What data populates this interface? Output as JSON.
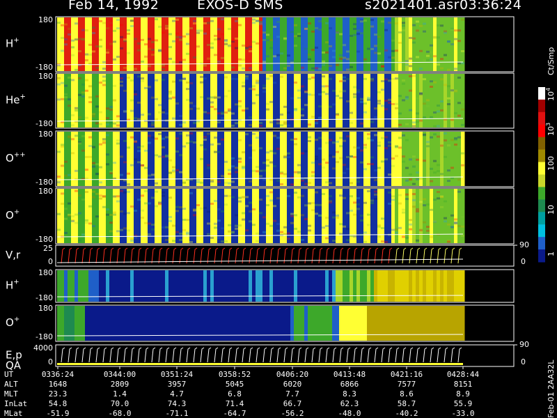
{
  "header": {
    "date": "Feb 14, 1992",
    "mission": "EXOS-D SMS",
    "filename": "s2021401.asr",
    "time": "03:36:24"
  },
  "chart_data": {
    "type": "heatmap",
    "panels": [
      {
        "name": "H+",
        "label": "H",
        "sup": "+",
        "ymax": "180",
        "ymin": "-180"
      },
      {
        "name": "He+",
        "label": "He",
        "sup": "+",
        "ymax": "180",
        "ymin": "-180"
      },
      {
        "name": "O++",
        "label": "O",
        "sup": "++",
        "ymax": "180",
        "ymin": "-180"
      },
      {
        "name": "O+",
        "label": "O",
        "sup": "+",
        "ymax": "180",
        "ymin": "-180"
      },
      {
        "name": "Vr",
        "label": "V,r",
        "sup": "",
        "ymax": "25",
        "ymin": "0",
        "right_top": "90",
        "right_bottom": "0"
      },
      {
        "name": "H+ (2)",
        "label": "H",
        "sup": "+",
        "ymax": "180",
        "ymin": "-180"
      },
      {
        "name": "O+ (2)",
        "label": "O",
        "sup": "+",
        "ymax": "180",
        "ymin": "-180"
      },
      {
        "name": "E,p QA",
        "label": "E,p",
        "label2": "QA",
        "sup": "",
        "ymax": "4000",
        "ymin": "0",
        "right_top": "90",
        "right_bottom": "0"
      }
    ],
    "colorbar": {
      "unit": "Ct/Smp",
      "ticks": [
        {
          "base": "10",
          "exp": "4"
        },
        {
          "base": "10",
          "exp": "3"
        },
        {
          "base": "100",
          "exp": ""
        },
        {
          "base": "10",
          "exp": ""
        },
        {
          "base": "1",
          "exp": ""
        }
      ]
    },
    "time_axis": {
      "row_labels": [
        "UT",
        "ALT",
        "MLT",
        "InLat",
        "MLat"
      ],
      "columns": [
        {
          "UT": "0336:24",
          "ALT": "1648",
          "MLT": "23.3",
          "InLat": "54.8",
          "MLat": "-51.9"
        },
        {
          "UT": "0344:00",
          "ALT": "2809",
          "MLT": "1.4",
          "InLat": "70.0",
          "MLat": "-68.0"
        },
        {
          "UT": "0351:24",
          "ALT": "3957",
          "MLT": "4.7",
          "InLat": "74.3",
          "MLat": "-71.1"
        },
        {
          "UT": "0358:52",
          "ALT": "5045",
          "MLT": "6.8",
          "InLat": "71.4",
          "MLat": "-64.7"
        },
        {
          "UT": "0406:20",
          "ALT": "6020",
          "MLT": "7.7",
          "InLat": "66.7",
          "MLat": "-56.2"
        },
        {
          "UT": "0413:48",
          "ALT": "6866",
          "MLT": "8.3",
          "InLat": "62.3",
          "MLat": "-48.0"
        },
        {
          "UT": "0421:16",
          "ALT": "7577",
          "MLT": "8.6",
          "InLat": "58.7",
          "MLat": "-40.2"
        },
        {
          "UT": "0428:44",
          "ALT": "8151",
          "MLT": "8.9",
          "InLat": "55.9",
          "MLat": "-33.0"
        }
      ]
    },
    "footer_tag": "Feb-01 2AA32L"
  }
}
